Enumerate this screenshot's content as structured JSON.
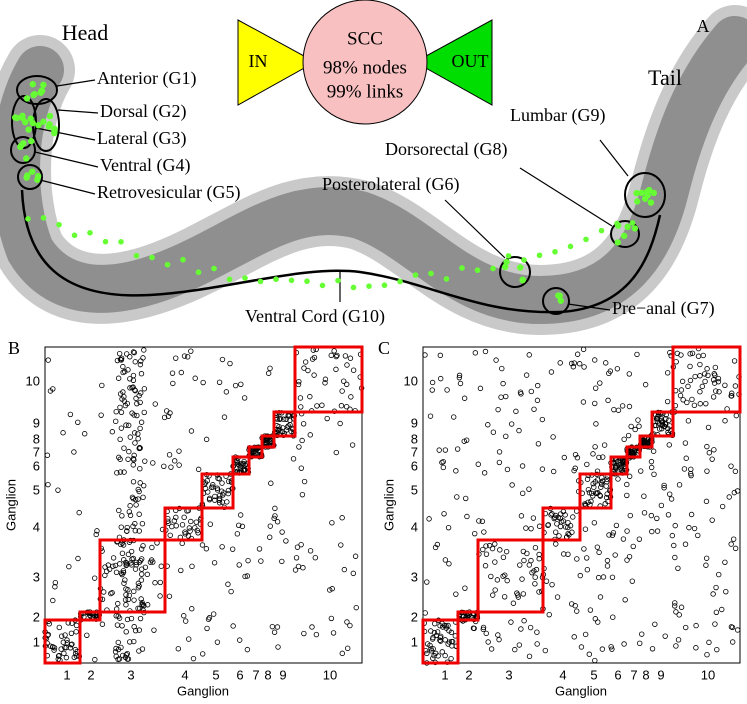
{
  "panel_a": {
    "letter": "A",
    "head": "Head",
    "tail": "Tail",
    "scc": {
      "in": "IN",
      "out": "OUT",
      "title": "SCC",
      "nodes": "98% nodes",
      "links": "99% links"
    },
    "labels": [
      "Anterior (G1)",
      "Dorsal (G2)",
      "Lateral (G3)",
      "Ventral (G4)",
      "Retrovesicular (G5)",
      "Posterolateral (G6)",
      "Pre−anal (G7)",
      "Dorsorectal (G8)",
      "Lumbar (G9)",
      "Ventral Cord (G10)"
    ]
  },
  "panels": [
    {
      "letter": "B",
      "xlabel": "Ganglion",
      "ylabel": "Ganglion",
      "ticks": [
        "1",
        "2",
        "3",
        "4",
        "5",
        "6",
        "7",
        "8",
        "9",
        "10"
      ]
    },
    {
      "letter": "C",
      "xlabel": "Ganglion",
      "ylabel": "Ganglion",
      "ticks": [
        "1",
        "2",
        "3",
        "4",
        "5",
        "6",
        "7",
        "8",
        "9",
        "10"
      ]
    }
  ]
}
